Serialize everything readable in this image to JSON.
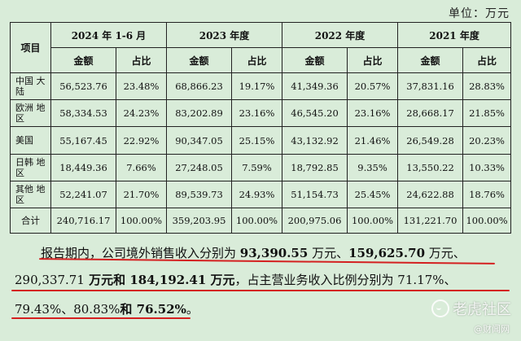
{
  "unit_label": "单位：万元",
  "table": {
    "col_item": "项目",
    "periods": [
      "2024 年 1-6 月",
      "2023 年度",
      "2022 年度",
      "2021 年度"
    ],
    "sub_amount": "金额",
    "sub_ratio": "占比",
    "rows": [
      {
        "region": "中国\n大陆",
        "cells": [
          "56,523.76",
          "23.48%",
          "68,866.23",
          "19.17%",
          "41,349.36",
          "20.57%",
          "37,831.16",
          "28.83%"
        ]
      },
      {
        "region": "欧洲\n地区",
        "cells": [
          "58,334.53",
          "24.23%",
          "83,202.89",
          "23.16%",
          "46,545.20",
          "23.16%",
          "28,668.17",
          "21.85%"
        ]
      },
      {
        "region": "美国",
        "cells": [
          "55,167.45",
          "22.92%",
          "90,347.05",
          "25.15%",
          "43,132.92",
          "21.46%",
          "26,549.28",
          "20.23%"
        ]
      },
      {
        "region": "日韩\n地区",
        "cells": [
          "18,449.36",
          "7.66%",
          "27,248.05",
          "7.59%",
          "18,792.85",
          "9.35%",
          "13,550.22",
          "10.33%"
        ]
      },
      {
        "region": "其他\n地区",
        "cells": [
          "52,241.07",
          "21.70%",
          "89,539.73",
          "24.93%",
          "51,154.73",
          "25.45%",
          "24,622.88",
          "18.76%"
        ]
      }
    ],
    "total": {
      "label": "合计",
      "cells": [
        "240,716.17",
        "100.00%",
        "359,203.95",
        "100.00%",
        "200,975.06",
        "100.00%",
        "131,221.70",
        "100.00%"
      ]
    }
  },
  "paragraph": {
    "line1_a": "报告期内，公司境外销售收入分别为 ",
    "line1_b": "93,390.55",
    "line1_c": " 万元、",
    "line1_d": "159,625.70",
    "line1_e": " 万元、",
    "line2_a": "290,337.71",
    "line2_b": " 万元和 ",
    "line2_c": "184,192.41 万元",
    "line2_d": "，占主营业务收入比例分别为 ",
    "line2_e": "71.17%",
    "line2_f": "、",
    "line3_a": "79.43%",
    "line3_b": "、",
    "line3_c": "80.83%",
    "line3_d": "和 ",
    "line3_e": "76.52%",
    "line3_f": "。"
  },
  "watermark": {
    "brand": "老虎社区",
    "sub": "@财闻网"
  }
}
